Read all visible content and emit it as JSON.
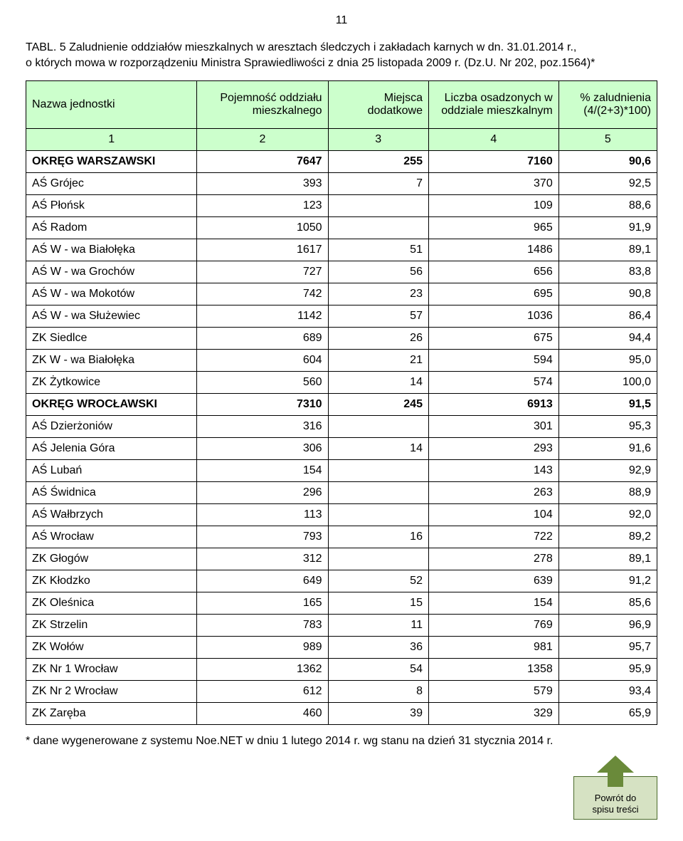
{
  "page_number": "11",
  "title_line1": "TABL. 5  Zaludnienie oddziałów mieszkalnych w aresztach śledczych i zakładach karnych w dn. 31.01.2014 r.,",
  "title_line2": "o których mowa w rozporządzeniu Ministra Sprawiedliwości z dnia 25 listopada 2009 r. (Dz.U. Nr 202, poz.1564)*",
  "headers": {
    "c1": "Nazwa jednostki",
    "c2": "Pojemność oddziału mieszkalnego",
    "c3": "Miejsca dodatkowe",
    "c4": "Liczba osadzonych w oddziale mieszkalnym",
    "c5": "% zaludnienia (4/(2+3)*100)"
  },
  "numrow": [
    "1",
    "2",
    "3",
    "4",
    "5"
  ],
  "rows": [
    {
      "name": "OKRĘG WARSZAWSKI",
      "cap": "7647",
      "extra": "255",
      "occ": "7160",
      "pct": "90,6",
      "section": true
    },
    {
      "name": "AŚ Grójec",
      "cap": "393",
      "extra": "7",
      "occ": "370",
      "pct": "92,5"
    },
    {
      "name": "AŚ Płońsk",
      "cap": "123",
      "extra": "",
      "occ": "109",
      "pct": "88,6"
    },
    {
      "name": "AŚ Radom",
      "cap": "1050",
      "extra": "",
      "occ": "965",
      "pct": "91,9"
    },
    {
      "name": "AŚ W - wa  Białołęka",
      "cap": "1617",
      "extra": "51",
      "occ": "1486",
      "pct": "89,1"
    },
    {
      "name": "AŚ W - wa Grochów",
      "cap": "727",
      "extra": "56",
      "occ": "656",
      "pct": "83,8"
    },
    {
      "name": "AŚ W - wa Mokotów",
      "cap": "742",
      "extra": "23",
      "occ": "695",
      "pct": "90,8"
    },
    {
      "name": "AŚ W - wa Służewiec",
      "cap": "1142",
      "extra": "57",
      "occ": "1036",
      "pct": "86,4"
    },
    {
      "name": "ZK Siedlce",
      "cap": "689",
      "extra": "26",
      "occ": "675",
      "pct": "94,4"
    },
    {
      "name": "ZK W - wa Białołęka",
      "cap": "604",
      "extra": "21",
      "occ": "594",
      "pct": "95,0"
    },
    {
      "name": "ZK Żytkowice",
      "cap": "560",
      "extra": "14",
      "occ": "574",
      "pct": "100,0"
    },
    {
      "name": "OKRĘG WROCŁAWSKI",
      "cap": "7310",
      "extra": "245",
      "occ": "6913",
      "pct": "91,5",
      "section": true
    },
    {
      "name": "AŚ Dzierżoniów",
      "cap": "316",
      "extra": "",
      "occ": "301",
      "pct": "95,3"
    },
    {
      "name": "AŚ Jelenia Góra",
      "cap": "306",
      "extra": "14",
      "occ": "293",
      "pct": "91,6"
    },
    {
      "name": "AŚ Lubań",
      "cap": "154",
      "extra": "",
      "occ": "143",
      "pct": "92,9"
    },
    {
      "name": "AŚ Świdnica",
      "cap": "296",
      "extra": "",
      "occ": "263",
      "pct": "88,9"
    },
    {
      "name": "AŚ Wałbrzych",
      "cap": "113",
      "extra": "",
      "occ": "104",
      "pct": "92,0"
    },
    {
      "name": "AŚ Wrocław",
      "cap": "793",
      "extra": "16",
      "occ": "722",
      "pct": "89,2"
    },
    {
      "name": "ZK Głogów",
      "cap": "312",
      "extra": "",
      "occ": "278",
      "pct": "89,1"
    },
    {
      "name": "ZK Kłodzko",
      "cap": "649",
      "extra": "52",
      "occ": "639",
      "pct": "91,2"
    },
    {
      "name": "ZK Oleśnica",
      "cap": "165",
      "extra": "15",
      "occ": "154",
      "pct": "85,6"
    },
    {
      "name": "ZK Strzelin",
      "cap": "783",
      "extra": "11",
      "occ": "769",
      "pct": "96,9"
    },
    {
      "name": "ZK Wołów",
      "cap": "989",
      "extra": "36",
      "occ": "981",
      "pct": "95,7"
    },
    {
      "name": "ZK Nr 1 Wrocław",
      "cap": "1362",
      "extra": "54",
      "occ": "1358",
      "pct": "95,9"
    },
    {
      "name": "ZK Nr 2 Wrocław",
      "cap": "612",
      "extra": "8",
      "occ": "579",
      "pct": "93,4"
    },
    {
      "name": "ZK Zaręba",
      "cap": "460",
      "extra": "39",
      "occ": "329",
      "pct": "65,9"
    }
  ],
  "footnote": "* dane wygenerowane z systemu Noe.NET w dniu 1 lutego 2014 r.  wg stanu na dzień 31 stycznia 2014 r.",
  "back_label_line1": "Powrót do",
  "back_label_line2": "spisu treści",
  "colors": {
    "header_bg": "#ccffcc",
    "border": "#000000",
    "back_fill": "#d6e2c3",
    "back_border": "#4a6a2a",
    "arrow": "#6a8a3a"
  }
}
